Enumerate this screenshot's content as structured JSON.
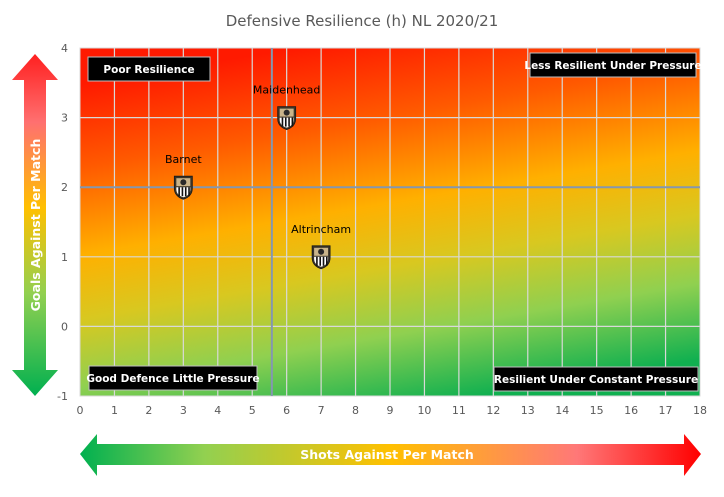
{
  "chart_data": {
    "type": "scatter",
    "title": "Defensive Resilience (h) NL 2020/21",
    "xlabel": "Shots Against Per Match",
    "ylabel": "Goals Against Per Match",
    "xlim": [
      0,
      18
    ],
    "ylim": [
      -1,
      4
    ],
    "x_ticks": [
      "0",
      "1",
      "2",
      "3",
      "4",
      "5",
      "6",
      "7",
      "8",
      "9",
      "10",
      "11",
      "12",
      "13",
      "14",
      "15",
      "16",
      "17",
      "18"
    ],
    "y_ticks": [
      "-1",
      "0",
      "1",
      "2",
      "3",
      "4"
    ],
    "grid": true,
    "reference_lines": {
      "x": 5.57,
      "y": 2
    },
    "points": [
      {
        "label": "Barnet",
        "x": 3,
        "y": 2
      },
      {
        "label": "Maidenhead",
        "x": 6,
        "y": 3
      },
      {
        "label": "Altrincham",
        "x": 7,
        "y": 1
      }
    ],
    "quadrant_labels": {
      "top_left": "Poor Resilience",
      "top_right": "Less Resilient Under Pressure",
      "bottom_left": "Good Defence Little Pressure",
      "bottom_right": "Resilient Under Constant Pressure"
    },
    "marker_icon": "club-crest-icon",
    "colors": {
      "high": "#ff1a00",
      "mid": "#ffc000",
      "low": "#00b050",
      "grid": "#d9d9d9",
      "reference": "#8497b0"
    }
  }
}
